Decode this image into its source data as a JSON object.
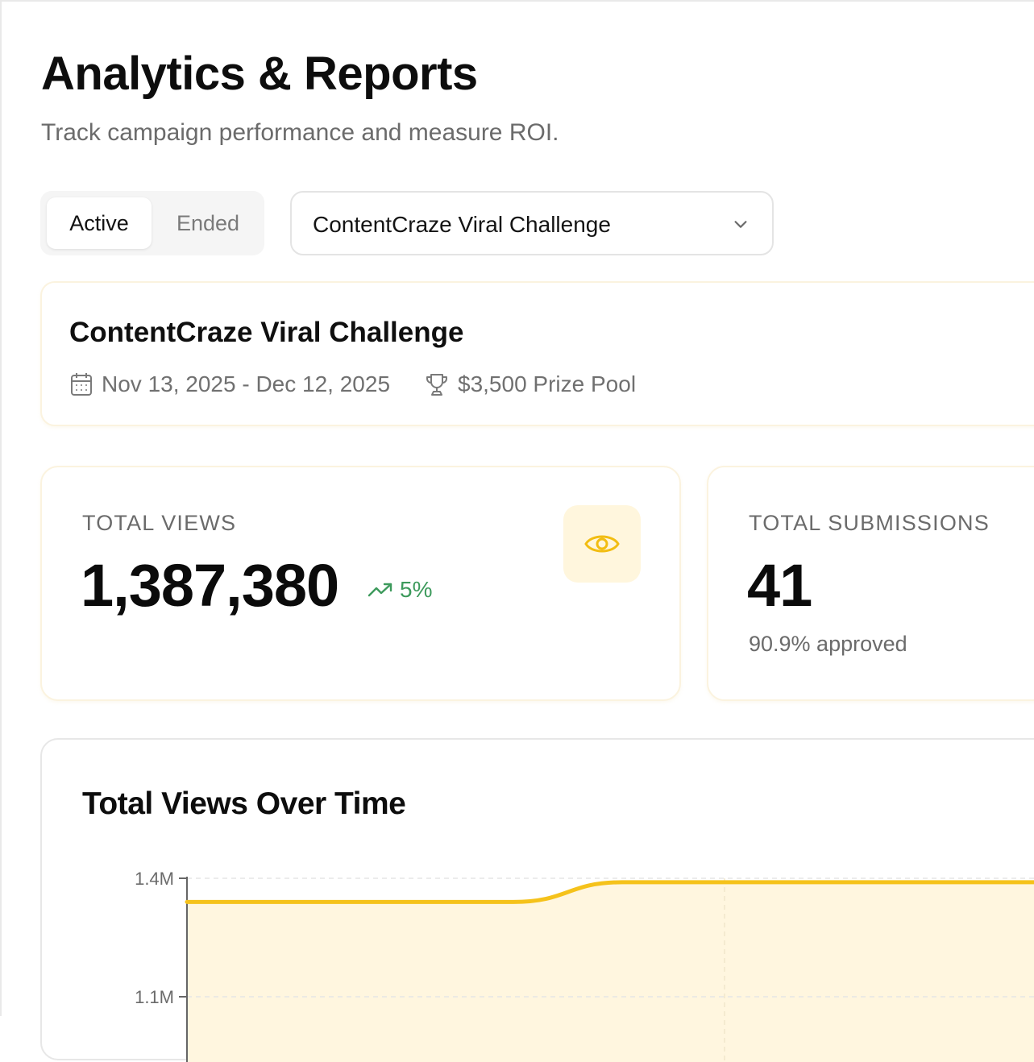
{
  "header": {
    "title": "Analytics & Reports",
    "subtitle": "Track campaign performance and measure ROI."
  },
  "filters": {
    "tabs": [
      {
        "label": "Active",
        "selected": true
      },
      {
        "label": "Ended",
        "selected": false
      }
    ],
    "campaign_select": {
      "value": "ContentCraze Viral Challenge",
      "icon": "chevron-down-icon"
    }
  },
  "campaign": {
    "name": "ContentCraze Viral Challenge",
    "date_range": "Nov 13, 2025 - Dec 12, 2025",
    "prize_pool": "$3,500 Prize Pool",
    "date_icon": "calendar-icon",
    "prize_icon": "trophy-icon"
  },
  "stats": {
    "views": {
      "label": "TOTAL VIEWS",
      "value": "1,387,380",
      "trend": "5%",
      "trend_icon": "trending-up-icon",
      "icon": "eye-icon"
    },
    "submissions": {
      "label": "TOTAL SUBMISSIONS",
      "value": "41",
      "sub": "90.9% approved"
    }
  },
  "colors": {
    "accent": "#f5c21b",
    "accent_fill": "#fff6df",
    "trend_green": "#3d9a5c"
  },
  "chart_data": {
    "type": "area",
    "title": "Total Views Over Time",
    "xlabel": "",
    "ylabel": "",
    "y_ticks": [
      {
        "value": 1400000,
        "label": "1.4M"
      },
      {
        "value": 1100000,
        "label": "1.1M"
      }
    ],
    "series": [
      {
        "values": [
          1340000,
          1340000,
          1340000,
          1340000,
          1390000,
          1390000,
          1390000,
          1390000,
          1390000
        ]
      }
    ],
    "grid": true
  }
}
